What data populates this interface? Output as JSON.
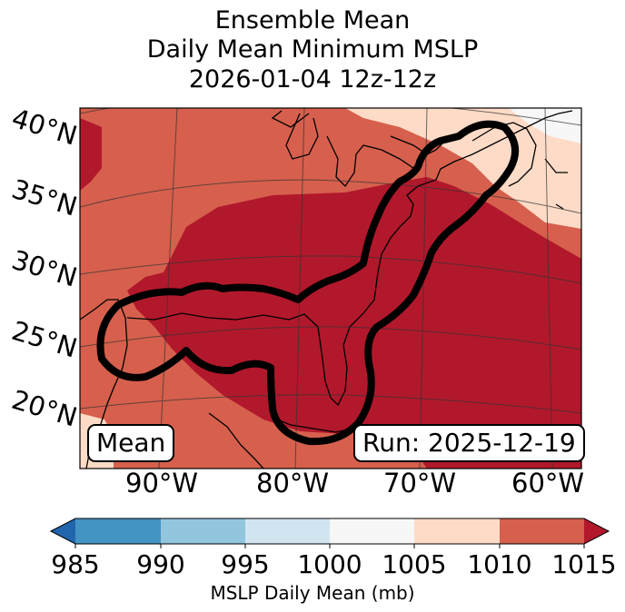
{
  "title": {
    "line1": "Ensemble Mean",
    "line2": "Daily Mean Minimum MSLP",
    "line3": "2026-01-04 12z-12z"
  },
  "map": {
    "region": "Eastern United States and Western Atlantic",
    "lat_labels": [
      "40°N",
      "35°N",
      "30°N",
      "25°N",
      "20°N"
    ],
    "lon_labels": [
      "90°W",
      "80°W",
      "70°W",
      "60°W"
    ],
    "mean_label": "Mean",
    "run_label": "Run: 2025-12-19"
  },
  "colorbar": {
    "label": "MSLP Daily Mean (mb)",
    "ticks": [
      "985",
      "990",
      "995",
      "1000",
      "1005",
      "1010",
      "1015"
    ],
    "colors": [
      "#4393c3",
      "#92c5de",
      "#d1e5f0",
      "#f7f7f7",
      "#fddbc7",
      "#d6604d",
      "#b2182b"
    ],
    "under_color": "#2166ac",
    "over_color": "#b2182b",
    "contour_color": "#000000"
  }
}
